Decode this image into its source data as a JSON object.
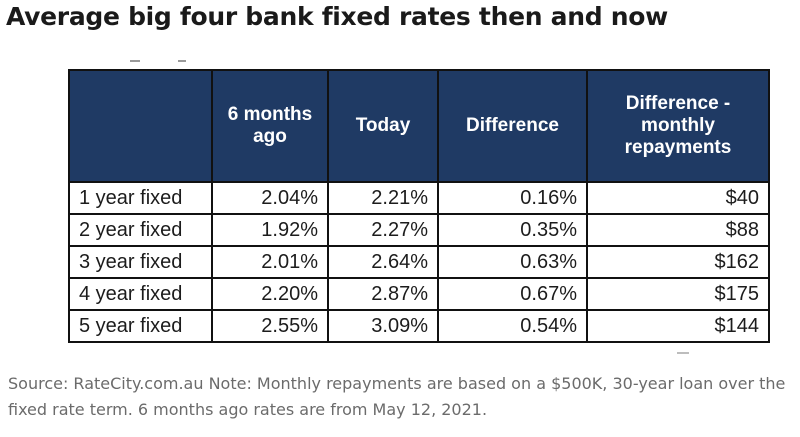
{
  "title": "Average big four bank fixed rates then and now",
  "table": {
    "columns": [
      "",
      "6 months ago",
      "Today",
      "Difference",
      "Difference - monthly repayments"
    ],
    "rows": [
      {
        "term": "1 year fixed",
        "six_months_ago": "2.04%",
        "today": "2.21%",
        "difference": "0.16%",
        "monthly_repayments": "$40"
      },
      {
        "term": "2 year fixed",
        "six_months_ago": "1.92%",
        "today": "2.27%",
        "difference": "0.35%",
        "monthly_repayments": "$88"
      },
      {
        "term": "3 year fixed",
        "six_months_ago": "2.01%",
        "today": "2.64%",
        "difference": "0.63%",
        "monthly_repayments": "$162"
      },
      {
        "term": "4 year fixed",
        "six_months_ago": "2.20%",
        "today": "2.87%",
        "difference": "0.67%",
        "monthly_repayments": "$175"
      },
      {
        "term": "5 year fixed",
        "six_months_ago": "2.55%",
        "today": "3.09%",
        "difference": "0.54%",
        "monthly_repayments": "$144"
      }
    ]
  },
  "source_note": "Source: RateCity.com.au Note: Monthly repayments are based on a $500K, 30-year loan over the fixed rate term. 6 months ago rates are from May 12, 2021.",
  "colors": {
    "header_background": "#1f3a64",
    "header_text": "#ffffff",
    "border": "#111111",
    "note_text": "#6b6b6b"
  }
}
